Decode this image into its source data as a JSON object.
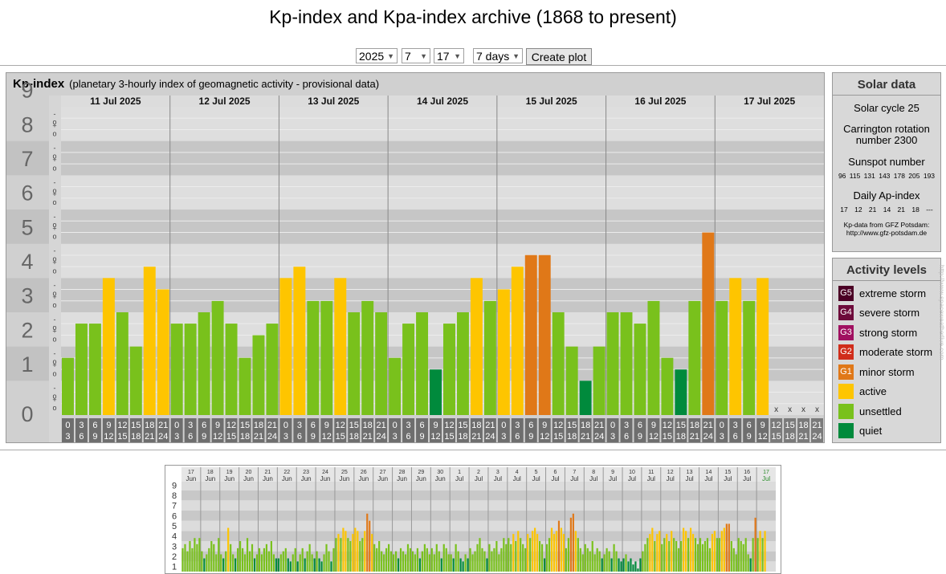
{
  "page_title": "Kp-index and Kpa-index archive (1868 to present)",
  "controls": {
    "year": "2025",
    "month": "7",
    "day": "17",
    "range": "7 days",
    "button": "Create plot"
  },
  "panel": {
    "title": "Kp-index",
    "subtitle": "(planetary 3-hourly index of geomagnetic activity - provisional data)"
  },
  "solar": {
    "header": "Solar data",
    "cycle": "Solar cycle 25",
    "carrington": "Carrington rotation number 2300",
    "sunspot_label": "Sunspot number",
    "sunspot_values": "96 115 131 143 178 205 193",
    "ap_label": "Daily Ap-index",
    "ap_values": "17 12 21 14 21 18 ---",
    "source": "Kp-data from GFZ Potsdam: http://www.gfz-potsdam.de"
  },
  "activity": {
    "header": "Activity levels",
    "levels": [
      {
        "code": "G5",
        "label": "extreme storm",
        "color": "#4b0025"
      },
      {
        "code": "G4",
        "label": "severe storm",
        "color": "#6d0a3a"
      },
      {
        "code": "G3",
        "label": "strong storm",
        "color": "#a01060"
      },
      {
        "code": "G2",
        "label": "moderate storm",
        "color": "#d02d1a"
      },
      {
        "code": "G1",
        "label": "minor storm",
        "color": "#e07818"
      },
      {
        "code": "",
        "label": "active",
        "color": "#fec500"
      },
      {
        "code": "",
        "label": "unsettled",
        "color": "#79c11c"
      },
      {
        "code": "",
        "label": "quiet",
        "color": "#008a3c"
      }
    ]
  },
  "chart_data": [
    {
      "type": "bar",
      "title": "Kp-index",
      "days": [
        "11 Jul 2025",
        "12 Jul 2025",
        "13 Jul 2025",
        "14 Jul 2025",
        "15 Jul 2025",
        "16 Jul 2025",
        "17 Jul 2025"
      ],
      "interval_labels": [
        [
          "0",
          "3"
        ],
        [
          "3",
          "6"
        ],
        [
          "6",
          "9"
        ],
        [
          "9",
          "12"
        ],
        [
          "12",
          "15"
        ],
        [
          "15",
          "18"
        ],
        [
          "18",
          "21"
        ],
        [
          "21",
          "24"
        ]
      ],
      "y_ticks": [
        "0",
        "1",
        "2",
        "3",
        "4",
        "5",
        "6",
        "7",
        "8",
        "9"
      ],
      "ylim": [
        0,
        9
      ],
      "values": [
        [
          1.67,
          2.67,
          2.67,
          4.0,
          3.0,
          2.0,
          4.33,
          3.67
        ],
        [
          2.67,
          2.67,
          3.0,
          3.33,
          2.67,
          1.67,
          2.33,
          2.67
        ],
        [
          4.0,
          4.33,
          3.33,
          3.33,
          4.0,
          3.0,
          3.33,
          3.0
        ],
        [
          1.67,
          2.67,
          3.0,
          1.33,
          2.67,
          3.0,
          4.0,
          3.33
        ],
        [
          3.67,
          4.33,
          4.67,
          4.67,
          3.0,
          2.0,
          1.0,
          2.0
        ],
        [
          3.0,
          3.0,
          2.67,
          3.33,
          1.67,
          1.33,
          3.33,
          5.33
        ],
        [
          3.33,
          4.0,
          3.33,
          4.0,
          null,
          null,
          null,
          null
        ]
      ],
      "missing_marker": "x"
    },
    {
      "type": "bar",
      "days": [
        {
          "d": "17",
          "m": "Jun"
        },
        {
          "d": "18",
          "m": "Jun"
        },
        {
          "d": "19",
          "m": "Jun"
        },
        {
          "d": "20",
          "m": "Jun"
        },
        {
          "d": "21",
          "m": "Jun"
        },
        {
          "d": "22",
          "m": "Jun"
        },
        {
          "d": "23",
          "m": "Jun"
        },
        {
          "d": "24",
          "m": "Jun"
        },
        {
          "d": "25",
          "m": "Jun"
        },
        {
          "d": "26",
          "m": "Jun"
        },
        {
          "d": "27",
          "m": "Jun"
        },
        {
          "d": "28",
          "m": "Jun"
        },
        {
          "d": "29",
          "m": "Jun"
        },
        {
          "d": "30",
          "m": "Jun"
        },
        {
          "d": "1",
          "m": "Jul"
        },
        {
          "d": "2",
          "m": "Jul"
        },
        {
          "d": "3",
          "m": "Jul"
        },
        {
          "d": "4",
          "m": "Jul"
        },
        {
          "d": "5",
          "m": "Jul"
        },
        {
          "d": "6",
          "m": "Jul"
        },
        {
          "d": "7",
          "m": "Jul"
        },
        {
          "d": "8",
          "m": "Jul"
        },
        {
          "d": "9",
          "m": "Jul"
        },
        {
          "d": "10",
          "m": "Jul"
        },
        {
          "d": "11",
          "m": "Jul"
        },
        {
          "d": "12",
          "m": "Jul"
        },
        {
          "d": "13",
          "m": "Jul"
        },
        {
          "d": "14",
          "m": "Jul"
        },
        {
          "d": "15",
          "m": "Jul"
        },
        {
          "d": "16",
          "m": "Jul"
        },
        {
          "d": "17",
          "m": "Jul"
        }
      ],
      "y_ticks": [
        "1",
        "2",
        "3",
        "4",
        "5",
        "6",
        "7",
        "8",
        "9"
      ],
      "ylim": [
        0,
        9
      ],
      "values": [
        2.3,
        2.7,
        2.0,
        3.0,
        2.3,
        3.3,
        2.7,
        3.3,
        2.0,
        1.3,
        1.7,
        2.3,
        3.0,
        2.7,
        1.7,
        3.3,
        1.7,
        1.3,
        2.0,
        4.3,
        2.7,
        1.7,
        1.3,
        2.3,
        3.0,
        2.3,
        1.7,
        3.3,
        2.0,
        2.7,
        1.3,
        1.7,
        2.3,
        1.7,
        2.3,
        2.7,
        2.0,
        3.0,
        1.7,
        1.3,
        1.3,
        1.7,
        2.0,
        2.3,
        1.3,
        1.0,
        1.7,
        2.3,
        1.0,
        1.7,
        2.3,
        1.3,
        2.0,
        2.7,
        1.7,
        1.3,
        2.0,
        1.3,
        1.0,
        1.7,
        2.7,
        2.0,
        1.0,
        2.3,
        3.3,
        3.7,
        3.3,
        4.3,
        4.0,
        3.3,
        3.0,
        3.7,
        4.3,
        4.0,
        3.0,
        3.3,
        4.0,
        5.7,
        5.0,
        3.7,
        2.7,
        2.3,
        3.0,
        2.0,
        1.7,
        2.3,
        2.7,
        2.0,
        1.7,
        2.0,
        1.3,
        2.3,
        2.0,
        1.7,
        2.7,
        2.3,
        2.0,
        1.7,
        2.3,
        1.3,
        2.0,
        2.7,
        2.3,
        1.7,
        2.3,
        1.7,
        2.7,
        2.0,
        1.3,
        2.7,
        2.3,
        1.7,
        1.7,
        1.3,
        2.7,
        2.0,
        1.3,
        1.0,
        1.7,
        1.3,
        2.3,
        1.7,
        2.0,
        2.7,
        3.3,
        2.3,
        2.0,
        1.3,
        2.7,
        2.0,
        2.3,
        3.0,
        1.7,
        2.3,
        3.3,
        2.7,
        3.3,
        2.7,
        3.7,
        3.0,
        4.0,
        3.3,
        2.7,
        2.3,
        3.7,
        3.3,
        4.0,
        4.3,
        3.7,
        3.0,
        2.7,
        1.3,
        2.7,
        3.3,
        4.3,
        3.7,
        4.0,
        5.0,
        4.3,
        3.7,
        2.3,
        3.3,
        5.3,
        5.7,
        4.0,
        3.3,
        2.3,
        1.7,
        2.7,
        2.3,
        2.0,
        3.0,
        1.7,
        2.3,
        2.0,
        1.3,
        1.7,
        2.3,
        2.0,
        1.3,
        2.7,
        2.0,
        1.3,
        1.0,
        1.3,
        1.7,
        1.0,
        1.3,
        0.7,
        1.0,
        0.3,
        1.3,
        2.0,
        2.7,
        3.3,
        3.7,
        4.3,
        3.0,
        3.7,
        4.0,
        2.7,
        3.3,
        3.7,
        3.0,
        4.0,
        3.3,
        3.0,
        2.3,
        3.0,
        4.3,
        4.0,
        3.3,
        4.3,
        3.7,
        3.3,
        2.7,
        3.3,
        2.7,
        3.0,
        3.3,
        2.3,
        3.7,
        4.0,
        3.3,
        3.3,
        4.0,
        4.3,
        4.7,
        4.7,
        3.0,
        2.3,
        1.7,
        3.3,
        3.0,
        2.7,
        3.3,
        1.7,
        1.3,
        3.3,
        5.3,
        3.3,
        4.0,
        3.3,
        4.0
      ]
    }
  ]
}
